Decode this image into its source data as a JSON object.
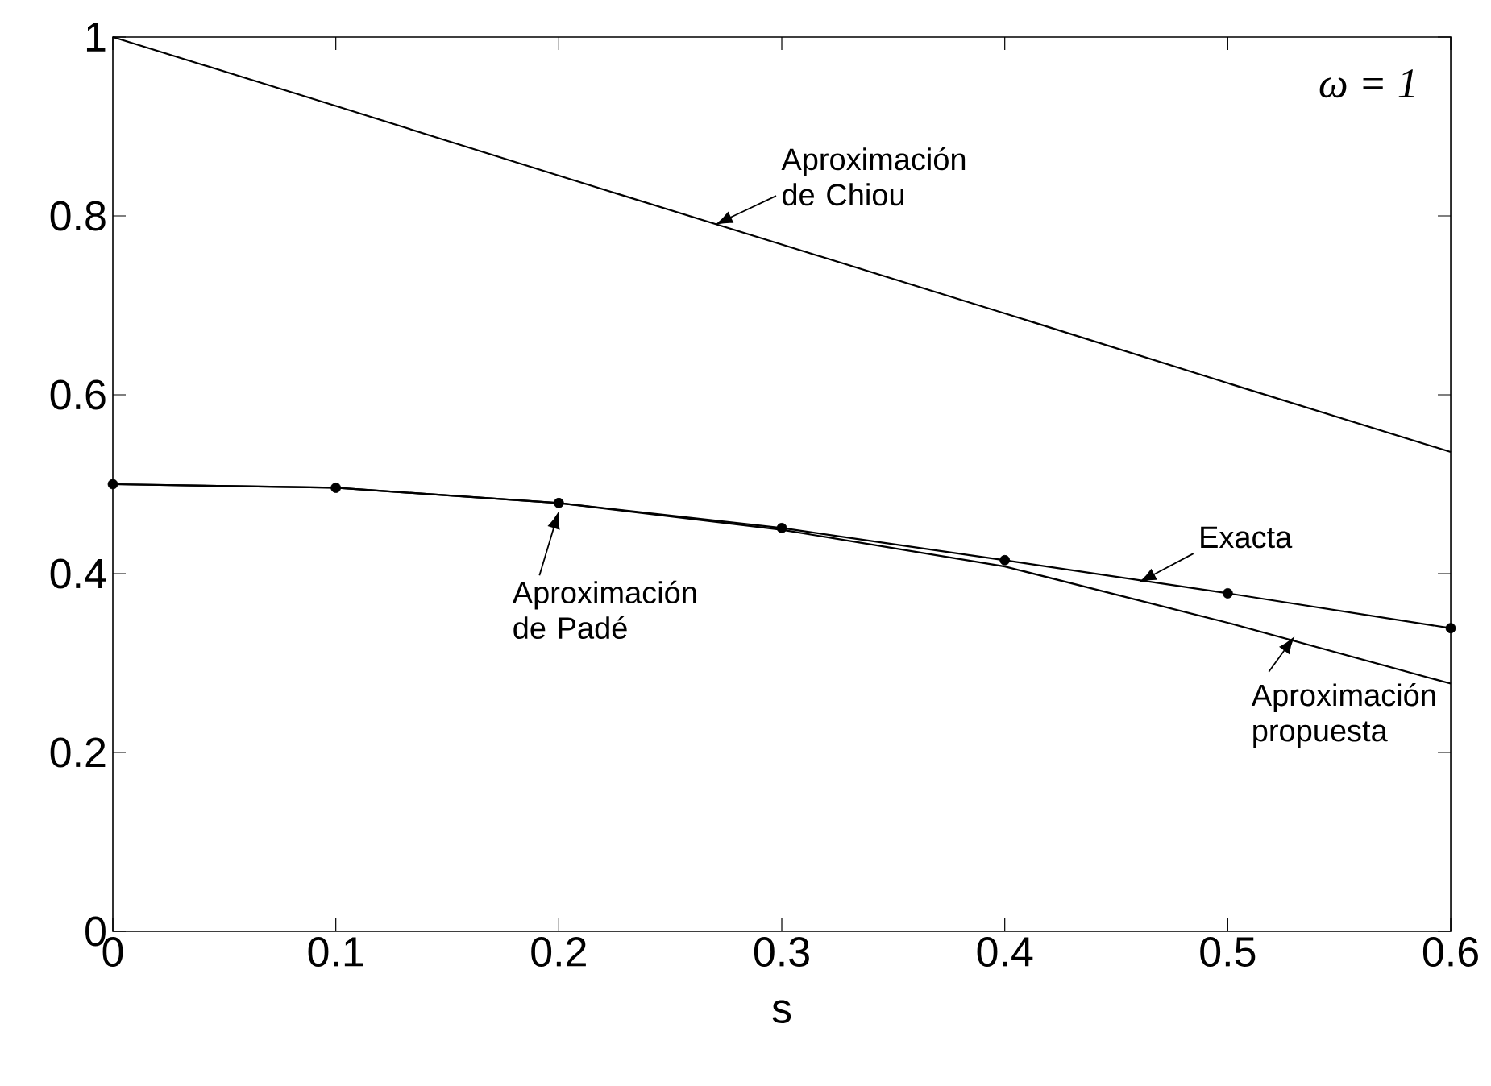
{
  "chart_data": {
    "type": "line",
    "xlabel": "s",
    "x": [
      0,
      0.1,
      0.2,
      0.3,
      0.4,
      0.5,
      0.6
    ],
    "series": [
      {
        "color": "#000000",
        "values": [
          1.0,
          0.923,
          0.845,
          0.768,
          0.691,
          0.613,
          0.536
        ]
      },
      {
        "color": "#000000",
        "values": [
          0.5,
          0.496,
          0.479,
          0.451,
          0.415,
          0.378,
          0.339
        ]
      },
      {
        "type": "scatter",
        "marker": "circle",
        "color": "#000000",
        "values": [
          0.5,
          0.496,
          0.479,
          0.451,
          0.415,
          0.378,
          0.339
        ]
      },
      {
        "color": "#000000",
        "values": [
          0.5,
          0.496,
          0.479,
          0.449,
          0.408,
          0.345,
          0.277
        ]
      }
    ],
    "xlim": [
      0,
      0.6
    ],
    "ylim": [
      0,
      1
    ],
    "xticks": [
      0,
      0.1,
      0.2,
      0.3,
      0.4,
      0.5,
      0.6
    ],
    "yticks": [
      0,
      0.2,
      0.4,
      0.6,
      0.8,
      1
    ],
    "annotations": [
      {
        "text": "Aproximación de Chiou",
        "x": 0.27,
        "y": 0.79
      },
      {
        "text": "Exacta",
        "x": 0.46,
        "y": 0.39
      },
      {
        "text": "Aproximación de Padé",
        "x": 0.2,
        "y": 0.47
      },
      {
        "text": "Aproximación propuesta",
        "x": 0.53,
        "y": 0.33
      },
      "ω = 1"
    ],
    "grid": false
  }
}
